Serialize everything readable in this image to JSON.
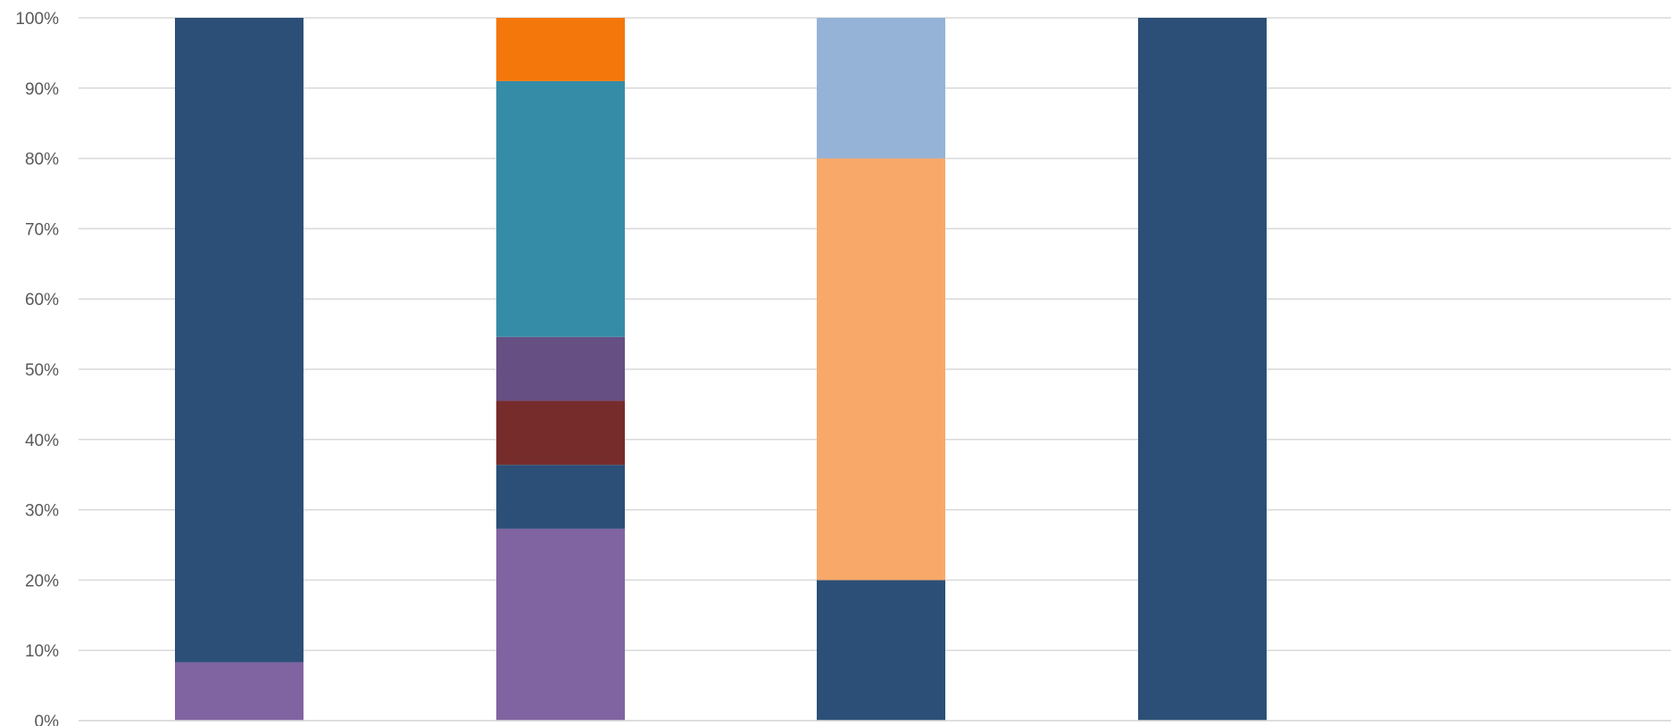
{
  "chart_data": {
    "type": "bar",
    "stacked": "percent",
    "ylim": [
      0,
      100
    ],
    "y_ticks": [
      "0%",
      "10%",
      "20%",
      "30%",
      "40%",
      "50%",
      "60%",
      "70%",
      "80%",
      "90%",
      "100%"
    ],
    "grid": true,
    "categories": [
      "",
      "",
      "",
      ""
    ],
    "bars": [
      {
        "segments": [
          {
            "value": 8.3,
            "color": "#8064a2"
          },
          {
            "value": 91.7,
            "color": "#2c4f77"
          }
        ]
      },
      {
        "segments": [
          {
            "value": 27.3,
            "color": "#8064a2"
          },
          {
            "value": 9.1,
            "color": "#2c4f77"
          },
          {
            "value": 9.1,
            "color": "#772c2c"
          },
          {
            "value": 9.1,
            "color": "#664f83"
          },
          {
            "value": 36.4,
            "color": "#358ca7"
          },
          {
            "value": 9.0,
            "color": "#f4770c"
          }
        ]
      },
      {
        "segments": [
          {
            "value": 20.0,
            "color": "#2c4f77"
          },
          {
            "value": 60.0,
            "color": "#f8a96a"
          },
          {
            "value": 20.0,
            "color": "#95b3d7"
          }
        ]
      },
      {
        "segments": [
          {
            "value": 100.0,
            "color": "#2c4f77"
          }
        ]
      }
    ],
    "colors": {
      "gridline": "#d9d9d9",
      "tick_text": "#595959"
    }
  }
}
